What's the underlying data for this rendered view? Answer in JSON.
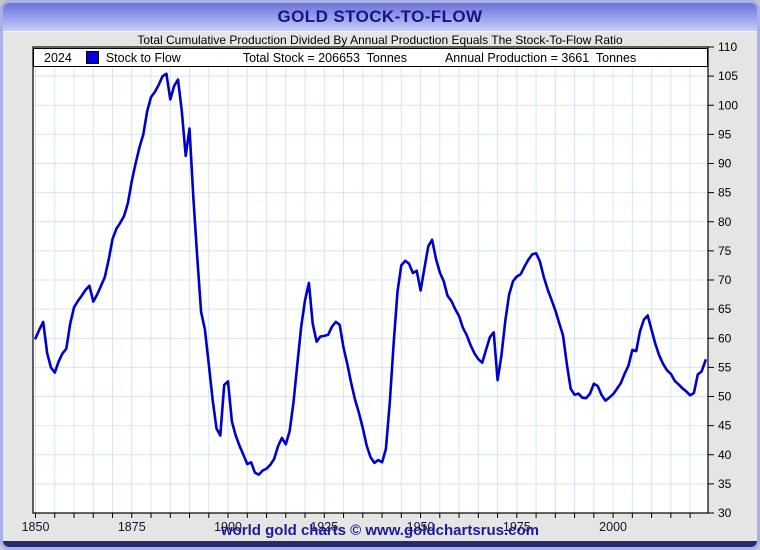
{
  "title_bar": {
    "title": "GOLD STOCK-TO-FLOW"
  },
  "subtitle": "Total Cumulative Production Divided By Annual Production Equals The Stock-To-Flow Ratio",
  "legend": {
    "year": "2024",
    "series_label": "Stock to Flow",
    "total_stock": "Total Stock = 206653  Tonnes",
    "annual_production": "Annual Production = 3661  Tonnes",
    "swatch_color": "#0000dd"
  },
  "footer": {
    "credit": "world gold charts © www.goldchartsrus.com"
  },
  "colors": {
    "page_bg": "#e5e5e5",
    "frame_border": "#a9afe9",
    "title_gradient_top": "#6d71d6",
    "title_gradient_bottom": "#c6cef9",
    "title_text": "#15157d",
    "plot_bg": "#ffffff",
    "plot_frame": "#000000",
    "grid": "#d8e4f2",
    "line": "#0000cc",
    "x_label_text": "#14142e",
    "y_label_text": "#000000",
    "footer_text": "#1c1c96",
    "navy_bar": "#242a6e"
  },
  "chart_data": {
    "type": "line",
    "title": "GOLD STOCK-TO-FLOW",
    "xlabel": "",
    "ylabel": "",
    "x_start": 1850,
    "x_end": 2024,
    "ylim": [
      30,
      110
    ],
    "grid": true,
    "legend_position": "top",
    "y_axis_side": "right",
    "line_color": "#0000cc",
    "x_ticks": [
      1850,
      1875,
      1900,
      1925,
      1950,
      1975,
      2000
    ],
    "x_minor_tick_step": 5,
    "y_ticks": [
      30,
      35,
      40,
      45,
      50,
      55,
      60,
      65,
      70,
      75,
      80,
      85,
      90,
      95,
      100,
      105,
      110
    ],
    "series": [
      {
        "name": "Stock to Flow",
        "values": [
          60.0,
          61.5,
          62.8,
          57.5,
          55.0,
          54.1,
          56.0,
          57.4,
          58.2,
          62.5,
          65.3,
          66.4,
          67.3,
          68.3,
          69.0,
          66.3,
          67.5,
          69.0,
          70.5,
          73.5,
          77.0,
          78.8,
          79.8,
          81.0,
          83.2,
          87.0,
          90.0,
          92.8,
          95.0,
          99.0,
          101.4,
          102.3,
          103.5,
          105.0,
          105.4,
          101.0,
          103.3,
          104.4,
          99.0,
          91.3,
          96.0,
          84.0,
          74.0,
          64.5,
          61.5,
          55.5,
          49.5,
          44.5,
          43.3,
          52.0,
          52.6,
          45.7,
          43.3,
          41.5,
          40.0,
          38.4,
          38.7,
          36.9,
          36.6,
          37.3,
          37.6,
          38.3,
          39.3,
          41.5,
          42.9,
          41.8,
          44.0,
          49.0,
          55.5,
          62.0,
          66.5,
          69.5,
          62.5,
          59.4,
          60.3,
          60.4,
          60.6,
          62.0,
          62.8,
          62.3,
          58.4,
          55.5,
          52.3,
          49.4,
          47.2,
          44.6,
          41.6,
          39.6,
          38.6,
          39.1,
          38.7,
          41.0,
          49.0,
          59.0,
          68.0,
          72.5,
          73.3,
          72.8,
          71.2,
          71.6,
          68.2,
          72.0,
          75.8,
          76.9,
          73.6,
          71.3,
          69.8,
          67.3,
          66.4,
          65.0,
          63.8,
          61.8,
          60.5,
          58.8,
          57.4,
          56.4,
          55.8,
          58.0,
          60.2,
          61.0,
          52.8,
          57.0,
          63.0,
          67.5,
          69.8,
          70.6,
          71.0,
          72.3,
          73.5,
          74.4,
          74.6,
          73.2,
          70.5,
          68.4,
          66.6,
          64.8,
          62.6,
          60.5,
          55.5,
          51.3,
          50.3,
          50.5,
          49.8,
          49.7,
          50.5,
          52.2,
          51.8,
          50.3,
          49.3,
          49.8,
          50.4,
          51.3,
          52.3,
          53.9,
          55.3,
          58.0,
          57.8,
          61.2,
          63.2,
          63.9,
          61.4,
          59.0,
          57.0,
          55.6,
          54.5,
          53.9,
          52.7,
          52.1,
          51.4,
          50.9,
          50.2,
          50.6,
          53.8,
          54.3,
          56.2
        ]
      }
    ]
  }
}
